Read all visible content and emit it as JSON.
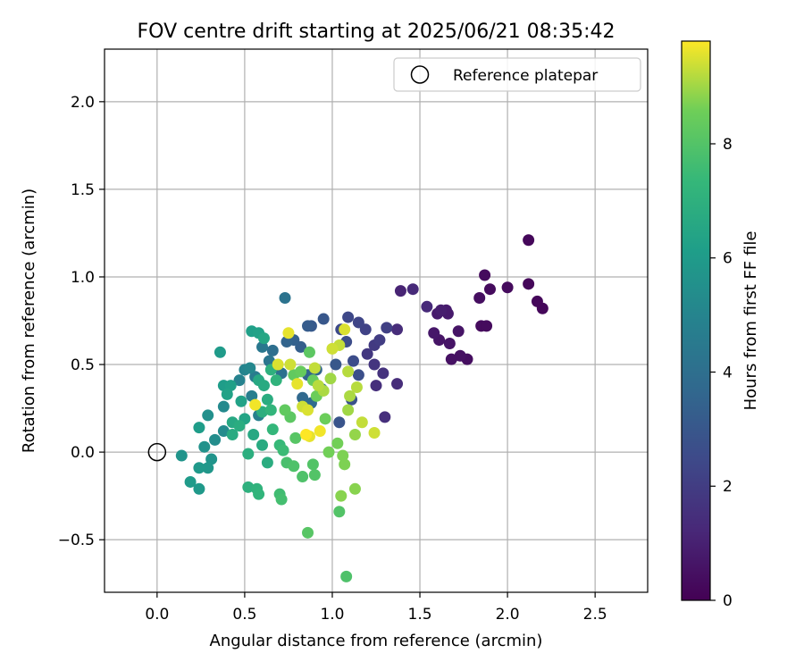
{
  "chart_data": {
    "type": "scatter",
    "title": "FOV centre drift starting at 2025/06/21 08:35:42",
    "xlabel": "Angular distance from reference (arcmin)",
    "ylabel": "Rotation from reference (arcmin)",
    "xlim": [
      -0.3,
      2.8
    ],
    "ylim": [
      -0.8,
      2.3
    ],
    "xticks": [
      0.0,
      0.5,
      1.0,
      1.5,
      2.0,
      2.5
    ],
    "xtick_labels": [
      "0.0",
      "0.5",
      "1.0",
      "1.5",
      "2.0",
      "2.5"
    ],
    "yticks": [
      -0.5,
      0.0,
      0.5,
      1.0,
      1.5,
      2.0
    ],
    "ytick_labels": [
      "−0.5",
      "0.0",
      "0.5",
      "1.0",
      "1.5",
      "2.0"
    ],
    "grid": true,
    "colormap": "viridis",
    "colorbar": {
      "label": "Hours from first FF file",
      "range": [
        0,
        9.8
      ],
      "ticks": [
        0,
        2,
        4,
        6,
        8
      ],
      "tick_labels": [
        "0",
        "2",
        "4",
        "6",
        "8"
      ]
    },
    "legend": {
      "position": "top-right",
      "entries": [
        {
          "label": "Reference platepar",
          "marker": "open-circle"
        }
      ]
    },
    "reference_point": {
      "x": 0.0,
      "y": 0.0
    },
    "points": [
      {
        "x": 2.12,
        "y": 1.21,
        "c": 0.2
      },
      {
        "x": 2.12,
        "y": 0.96,
        "c": 0.2
      },
      {
        "x": 2.17,
        "y": 0.86,
        "c": 0.2
      },
      {
        "x": 2.2,
        "y": 0.82,
        "c": 0.2
      },
      {
        "x": 2.0,
        "y": 0.94,
        "c": 0.3
      },
      {
        "x": 1.9,
        "y": 0.93,
        "c": 0.3
      },
      {
        "x": 1.87,
        "y": 1.01,
        "c": 0.3
      },
      {
        "x": 1.85,
        "y": 0.72,
        "c": 0.3
      },
      {
        "x": 1.88,
        "y": 0.72,
        "c": 0.3
      },
      {
        "x": 1.84,
        "y": 0.88,
        "c": 0.4
      },
      {
        "x": 1.77,
        "y": 0.53,
        "c": 0.4
      },
      {
        "x": 1.73,
        "y": 0.55,
        "c": 0.5
      },
      {
        "x": 1.68,
        "y": 0.53,
        "c": 0.5
      },
      {
        "x": 1.72,
        "y": 0.69,
        "c": 0.6
      },
      {
        "x": 1.67,
        "y": 0.62,
        "c": 0.6
      },
      {
        "x": 1.61,
        "y": 0.64,
        "c": 0.6
      },
      {
        "x": 1.58,
        "y": 0.68,
        "c": 0.7
      },
      {
        "x": 1.6,
        "y": 0.79,
        "c": 0.8
      },
      {
        "x": 1.66,
        "y": 0.79,
        "c": 0.8
      },
      {
        "x": 1.65,
        "y": 0.81,
        "c": 0.8
      },
      {
        "x": 1.62,
        "y": 0.81,
        "c": 0.9
      },
      {
        "x": 1.39,
        "y": 0.92,
        "c": 1.1
      },
      {
        "x": 1.46,
        "y": 0.93,
        "c": 1.3
      },
      {
        "x": 1.54,
        "y": 0.83,
        "c": 1.3
      },
      {
        "x": 1.37,
        "y": 0.7,
        "c": 1.4
      },
      {
        "x": 1.37,
        "y": 0.39,
        "c": 1.4
      },
      {
        "x": 1.3,
        "y": 0.2,
        "c": 1.5
      },
      {
        "x": 1.25,
        "y": 0.38,
        "c": 1.5
      },
      {
        "x": 1.29,
        "y": 0.45,
        "c": 1.6
      },
      {
        "x": 1.24,
        "y": 0.5,
        "c": 1.7
      },
      {
        "x": 1.2,
        "y": 0.56,
        "c": 1.8
      },
      {
        "x": 1.24,
        "y": 0.61,
        "c": 1.9
      },
      {
        "x": 1.27,
        "y": 0.64,
        "c": 2.0
      },
      {
        "x": 1.31,
        "y": 0.71,
        "c": 2.1
      },
      {
        "x": 1.19,
        "y": 0.7,
        "c": 2.2
      },
      {
        "x": 1.15,
        "y": 0.74,
        "c": 2.3
      },
      {
        "x": 1.09,
        "y": 0.77,
        "c": 2.4
      },
      {
        "x": 1.05,
        "y": 0.7,
        "c": 2.5
      },
      {
        "x": 1.08,
        "y": 0.63,
        "c": 2.6
      },
      {
        "x": 1.12,
        "y": 0.52,
        "c": 2.6
      },
      {
        "x": 1.15,
        "y": 0.44,
        "c": 2.7
      },
      {
        "x": 1.11,
        "y": 0.3,
        "c": 2.8
      },
      {
        "x": 1.04,
        "y": 0.17,
        "c": 2.9
      },
      {
        "x": 1.02,
        "y": 0.5,
        "c": 3.0
      },
      {
        "x": 0.95,
        "y": 0.76,
        "c": 3.0
      },
      {
        "x": 0.88,
        "y": 0.72,
        "c": 3.1
      },
      {
        "x": 0.86,
        "y": 0.72,
        "c": 3.2
      },
      {
        "x": 0.82,
        "y": 0.6,
        "c": 3.3
      },
      {
        "x": 0.78,
        "y": 0.64,
        "c": 3.4
      },
      {
        "x": 0.74,
        "y": 0.63,
        "c": 3.5
      },
      {
        "x": 0.91,
        "y": 0.47,
        "c": 3.6
      },
      {
        "x": 0.86,
        "y": 0.44,
        "c": 3.6
      },
      {
        "x": 0.83,
        "y": 0.31,
        "c": 3.7
      },
      {
        "x": 0.88,
        "y": 0.28,
        "c": 3.8
      },
      {
        "x": 0.94,
        "y": 0.36,
        "c": 3.9
      },
      {
        "x": 0.73,
        "y": 0.88,
        "c": 4.2
      },
      {
        "x": 0.66,
        "y": 0.58,
        "c": 4.0
      },
      {
        "x": 0.71,
        "y": 0.45,
        "c": 4.1
      },
      {
        "x": 0.64,
        "y": 0.52,
        "c": 4.3
      },
      {
        "x": 0.6,
        "y": 0.6,
        "c": 4.4
      },
      {
        "x": 0.56,
        "y": 0.43,
        "c": 4.6
      },
      {
        "x": 0.54,
        "y": 0.32,
        "c": 4.7
      },
      {
        "x": 0.58,
        "y": 0.21,
        "c": 4.8
      },
      {
        "x": 0.47,
        "y": 0.41,
        "c": 4.9
      },
      {
        "x": 0.5,
        "y": 0.47,
        "c": 5.0
      },
      {
        "x": 0.53,
        "y": 0.48,
        "c": 5.1
      },
      {
        "x": 0.38,
        "y": 0.26,
        "c": 5.2
      },
      {
        "x": 0.38,
        "y": 0.12,
        "c": 5.3
      },
      {
        "x": 0.33,
        "y": 0.07,
        "c": 5.4
      },
      {
        "x": 0.29,
        "y": 0.21,
        "c": 5.5
      },
      {
        "x": 0.27,
        "y": 0.03,
        "c": 5.6
      },
      {
        "x": 0.31,
        "y": -0.04,
        "c": 5.7
      },
      {
        "x": 0.29,
        "y": -0.09,
        "c": 5.8
      },
      {
        "x": 0.24,
        "y": -0.09,
        "c": 5.9
      },
      {
        "x": 0.14,
        "y": -0.02,
        "c": 5.7
      },
      {
        "x": 0.19,
        "y": -0.17,
        "c": 6.0
      },
      {
        "x": 0.24,
        "y": -0.21,
        "c": 5.9
      },
      {
        "x": 0.24,
        "y": 0.14,
        "c": 6.1
      },
      {
        "x": 0.36,
        "y": 0.57,
        "c": 6.0
      },
      {
        "x": 0.38,
        "y": 0.38,
        "c": 6.1
      },
      {
        "x": 0.42,
        "y": 0.38,
        "c": 6.2
      },
      {
        "x": 0.4,
        "y": 0.33,
        "c": 6.3
      },
      {
        "x": 0.48,
        "y": 0.29,
        "c": 6.3
      },
      {
        "x": 0.5,
        "y": 0.19,
        "c": 6.4
      },
      {
        "x": 0.54,
        "y": 0.69,
        "c": 6.2
      },
      {
        "x": 0.58,
        "y": 0.68,
        "c": 6.3
      },
      {
        "x": 0.61,
        "y": 0.65,
        "c": 6.5
      },
      {
        "x": 0.58,
        "y": 0.41,
        "c": 6.6
      },
      {
        "x": 0.61,
        "y": 0.38,
        "c": 6.7
      },
      {
        "x": 0.63,
        "y": 0.3,
        "c": 6.8
      },
      {
        "x": 0.6,
        "y": 0.23,
        "c": 6.9
      },
      {
        "x": 0.55,
        "y": 0.1,
        "c": 6.6
      },
      {
        "x": 0.6,
        "y": 0.04,
        "c": 6.7
      },
      {
        "x": 0.63,
        "y": -0.06,
        "c": 6.8
      },
      {
        "x": 0.52,
        "y": -0.01,
        "c": 6.9
      },
      {
        "x": 0.52,
        "y": -0.2,
        "c": 7.0
      },
      {
        "x": 0.57,
        "y": -0.21,
        "c": 7.1
      },
      {
        "x": 0.58,
        "y": -0.24,
        "c": 7.2
      },
      {
        "x": 0.43,
        "y": 0.17,
        "c": 6.6
      },
      {
        "x": 0.43,
        "y": 0.1,
        "c": 6.7
      },
      {
        "x": 0.47,
        "y": 0.15,
        "c": 6.8
      },
      {
        "x": 0.65,
        "y": 0.47,
        "c": 7.0
      },
      {
        "x": 0.68,
        "y": 0.41,
        "c": 7.1
      },
      {
        "x": 0.65,
        "y": 0.24,
        "c": 7.2
      },
      {
        "x": 0.66,
        "y": 0.13,
        "c": 7.3
      },
      {
        "x": 0.7,
        "y": 0.04,
        "c": 7.4
      },
      {
        "x": 0.72,
        "y": 0.01,
        "c": 7.5
      },
      {
        "x": 0.7,
        "y": -0.24,
        "c": 7.6
      },
      {
        "x": 0.71,
        "y": -0.27,
        "c": 7.7
      },
      {
        "x": 0.74,
        "y": -0.06,
        "c": 7.8
      },
      {
        "x": 0.78,
        "y": -0.08,
        "c": 7.9
      },
      {
        "x": 0.83,
        "y": -0.14,
        "c": 7.9
      },
      {
        "x": 0.9,
        "y": -0.13,
        "c": 8.0
      },
      {
        "x": 0.89,
        "y": -0.07,
        "c": 8.0
      },
      {
        "x": 0.86,
        "y": -0.46,
        "c": 8.1
      },
      {
        "x": 0.79,
        "y": 0.08,
        "c": 8.1
      },
      {
        "x": 0.76,
        "y": 0.2,
        "c": 8.2
      },
      {
        "x": 0.73,
        "y": 0.24,
        "c": 8.3
      },
      {
        "x": 0.78,
        "y": 0.44,
        "c": 8.3
      },
      {
        "x": 0.82,
        "y": 0.46,
        "c": 8.4
      },
      {
        "x": 0.87,
        "y": 0.57,
        "c": 8.2
      },
      {
        "x": 0.89,
        "y": 0.41,
        "c": 8.4
      },
      {
        "x": 0.91,
        "y": 0.32,
        "c": 8.5
      },
      {
        "x": 0.96,
        "y": 0.19,
        "c": 8.5
      },
      {
        "x": 0.98,
        "y": 0.0,
        "c": 8.6
      },
      {
        "x": 1.03,
        "y": 0.05,
        "c": 8.6
      },
      {
        "x": 1.06,
        "y": -0.02,
        "c": 8.7
      },
      {
        "x": 1.07,
        "y": -0.07,
        "c": 8.7
      },
      {
        "x": 1.05,
        "y": -0.25,
        "c": 8.8
      },
      {
        "x": 1.04,
        "y": -0.34,
        "c": 8.0
      },
      {
        "x": 1.13,
        "y": -0.21,
        "c": 8.8
      },
      {
        "x": 1.08,
        "y": -0.71,
        "c": 7.9
      },
      {
        "x": 1.13,
        "y": 0.1,
        "c": 8.9
      },
      {
        "x": 1.09,
        "y": 0.24,
        "c": 9.0
      },
      {
        "x": 1.1,
        "y": 0.32,
        "c": 9.1
      },
      {
        "x": 1.14,
        "y": 0.37,
        "c": 9.2
      },
      {
        "x": 1.17,
        "y": 0.17,
        "c": 9.3
      },
      {
        "x": 1.24,
        "y": 0.11,
        "c": 9.4
      },
      {
        "x": 1.09,
        "y": 0.46,
        "c": 9.2
      },
      {
        "x": 1.04,
        "y": 0.61,
        "c": 9.3
      },
      {
        "x": 1.0,
        "y": 0.59,
        "c": 9.4
      },
      {
        "x": 1.07,
        "y": 0.7,
        "c": 9.5
      },
      {
        "x": 0.99,
        "y": 0.42,
        "c": 9.0
      },
      {
        "x": 0.95,
        "y": 0.35,
        "c": 9.1
      },
      {
        "x": 0.92,
        "y": 0.38,
        "c": 9.2
      },
      {
        "x": 0.9,
        "y": 0.48,
        "c": 9.3
      },
      {
        "x": 0.75,
        "y": 0.68,
        "c": 9.6
      },
      {
        "x": 0.76,
        "y": 0.5,
        "c": 9.4
      },
      {
        "x": 0.69,
        "y": 0.5,
        "c": 9.5
      },
      {
        "x": 0.8,
        "y": 0.39,
        "c": 9.6
      },
      {
        "x": 0.56,
        "y": 0.27,
        "c": 9.7
      },
      {
        "x": 0.83,
        "y": 0.26,
        "c": 9.4
      },
      {
        "x": 0.86,
        "y": 0.24,
        "c": 9.5
      },
      {
        "x": 0.87,
        "y": 0.09,
        "c": 9.6
      },
      {
        "x": 0.93,
        "y": 0.12,
        "c": 9.7
      },
      {
        "x": 0.85,
        "y": 0.1,
        "c": 9.8
      }
    ]
  }
}
